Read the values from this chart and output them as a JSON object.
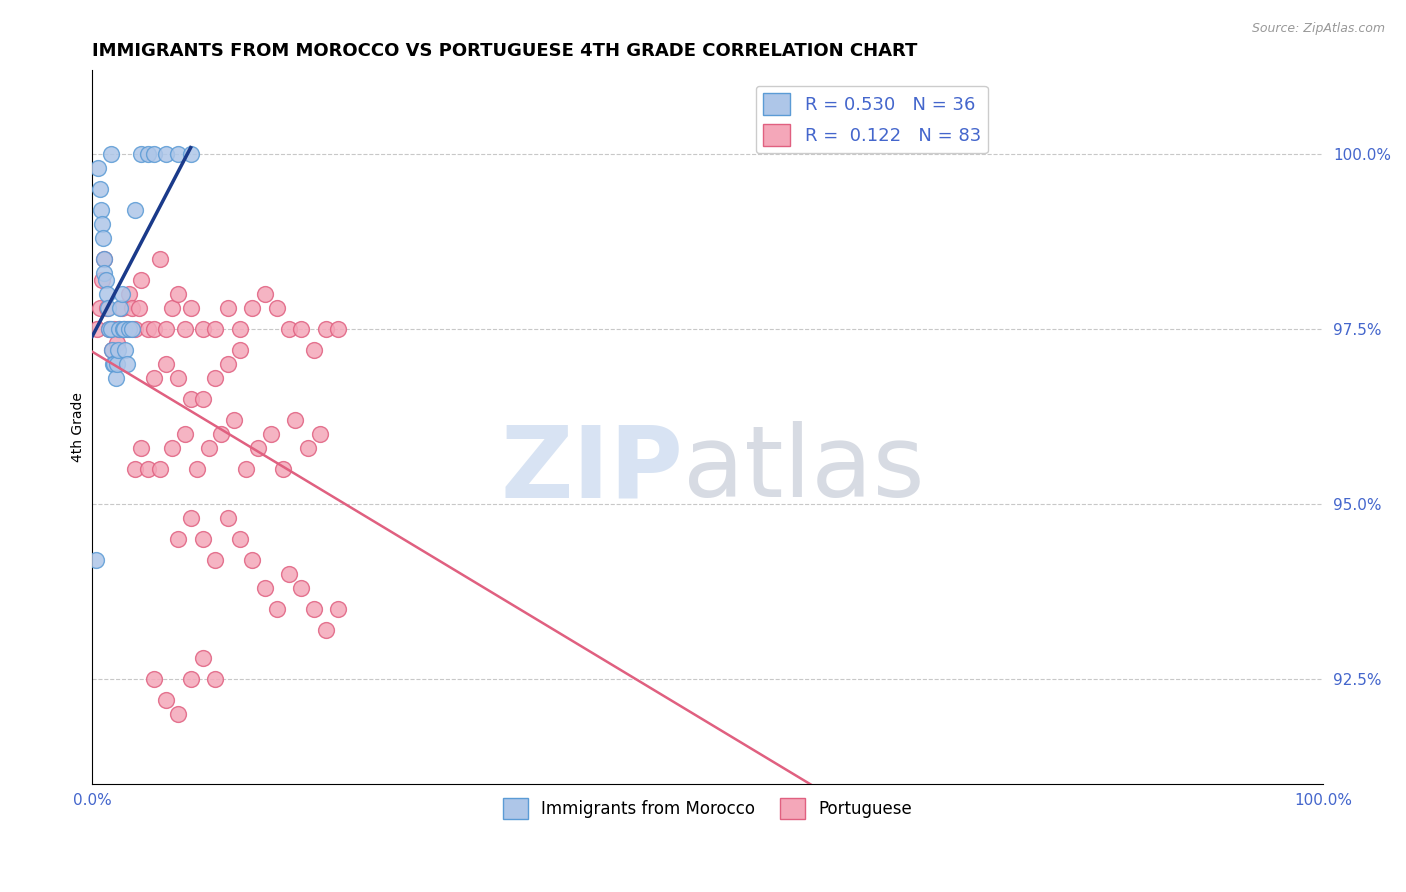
{
  "title": "IMMIGRANTS FROM MOROCCO VS PORTUGUESE 4TH GRADE CORRELATION CHART",
  "source_text": "Source: ZipAtlas.com",
  "ylabel": "4th Grade",
  "legend_entries": [
    {
      "label": "R = 0.530   N = 36",
      "color": "#aec6e8"
    },
    {
      "label": "R =  0.122   N = 83",
      "color": "#f4a7b9"
    }
  ],
  "x_tick_labels": [
    "0.0%",
    "100.0%"
  ],
  "y_tick_labels_right": [
    "100.0%",
    "97.5%",
    "95.0%",
    "92.5%"
  ],
  "y_tick_values_right": [
    100.0,
    97.5,
    95.0,
    92.5
  ],
  "x_lim": [
    0.0,
    100.0
  ],
  "y_lim": [
    91.0,
    101.2
  ],
  "title_fontsize": 13,
  "background_color": "#ffffff",
  "grid_color": "#c8c8c8",
  "blue_color": "#aec6e8",
  "blue_edge_color": "#5b9bd5",
  "pink_color": "#f4a7b9",
  "pink_edge_color": "#e06080",
  "trend_blue_color": "#1a3a8a",
  "trend_pink_color": "#e06080",
  "blue_dots_x": [
    0.3,
    0.5,
    0.6,
    0.7,
    0.8,
    0.9,
    1.0,
    1.0,
    1.1,
    1.2,
    1.3,
    1.4,
    1.5,
    1.6,
    1.7,
    1.8,
    1.9,
    2.0,
    2.1,
    2.2,
    2.3,
    2.4,
    2.5,
    2.6,
    2.7,
    2.8,
    3.0,
    3.2,
    3.5,
    4.0,
    4.5,
    5.0,
    6.0,
    7.0,
    8.0,
    1.5
  ],
  "blue_dots_y": [
    94.2,
    99.8,
    99.5,
    99.2,
    99.0,
    98.8,
    98.5,
    98.3,
    98.2,
    98.0,
    97.8,
    97.5,
    97.5,
    97.2,
    97.0,
    97.0,
    96.8,
    97.0,
    97.2,
    97.5,
    97.8,
    98.0,
    97.5,
    97.5,
    97.2,
    97.0,
    97.5,
    97.5,
    99.2,
    100.0,
    100.0,
    100.0,
    100.0,
    100.0,
    100.0,
    100.0
  ],
  "pink_dots_x": [
    0.4,
    0.6,
    0.8,
    1.0,
    1.2,
    1.4,
    1.6,
    1.8,
    2.0,
    2.2,
    2.4,
    2.6,
    2.8,
    3.0,
    3.2,
    3.5,
    3.8,
    4.0,
    4.5,
    5.0,
    5.5,
    6.0,
    6.5,
    7.0,
    7.5,
    8.0,
    9.0,
    10.0,
    11.0,
    12.0,
    13.0,
    14.0,
    15.0,
    16.0,
    17.0,
    18.0,
    19.0,
    20.0,
    5.0,
    6.0,
    7.0,
    8.0,
    9.0,
    10.0,
    11.0,
    12.0,
    3.5,
    4.0,
    4.5,
    5.5,
    6.5,
    7.5,
    8.5,
    9.5,
    10.5,
    11.5,
    12.5,
    13.5,
    14.5,
    15.5,
    16.5,
    17.5,
    18.5,
    7.0,
    8.0,
    9.0,
    10.0,
    11.0,
    12.0,
    13.0,
    14.0,
    15.0,
    16.0,
    17.0,
    18.0,
    19.0,
    20.0,
    5.0,
    6.0,
    7.0,
    8.0,
    9.0,
    10.0
  ],
  "pink_dots_y": [
    97.5,
    97.8,
    98.2,
    98.5,
    97.8,
    97.5,
    97.2,
    97.5,
    97.3,
    97.5,
    97.8,
    97.5,
    97.5,
    98.0,
    97.8,
    97.5,
    97.8,
    98.2,
    97.5,
    97.5,
    98.5,
    97.5,
    97.8,
    98.0,
    97.5,
    97.8,
    97.5,
    97.5,
    97.8,
    97.5,
    97.8,
    98.0,
    97.8,
    97.5,
    97.5,
    97.2,
    97.5,
    97.5,
    96.8,
    97.0,
    96.8,
    96.5,
    96.5,
    96.8,
    97.0,
    97.2,
    95.5,
    95.8,
    95.5,
    95.5,
    95.8,
    96.0,
    95.5,
    95.8,
    96.0,
    96.2,
    95.5,
    95.8,
    96.0,
    95.5,
    96.2,
    95.8,
    96.0,
    94.5,
    94.8,
    94.5,
    94.2,
    94.8,
    94.5,
    94.2,
    93.8,
    93.5,
    94.0,
    93.8,
    93.5,
    93.2,
    93.5,
    92.5,
    92.2,
    92.0,
    92.5,
    92.8,
    92.5
  ]
}
